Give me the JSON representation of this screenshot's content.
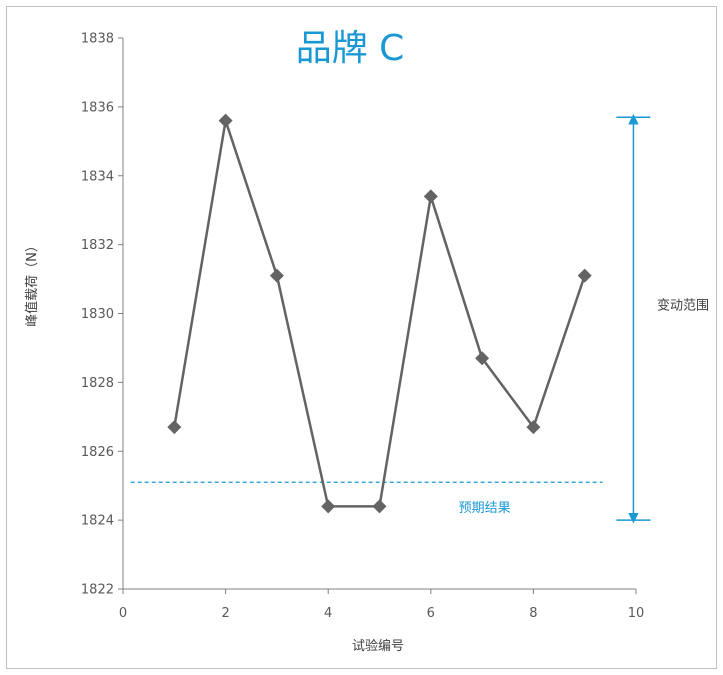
{
  "colors": {
    "series": "#636363",
    "accent": "#1a98d4",
    "axis": "#808080",
    "frame": "#bfbfbf",
    "annotation_text": "#404040"
  },
  "chart_data": {
    "type": "line",
    "title": "品牌 C",
    "xlabel": "试验编号",
    "ylabel": "峰值载荷（N）",
    "xlim": [
      0,
      10
    ],
    "ylim": [
      1822,
      1838
    ],
    "xticks": [
      0,
      2,
      4,
      6,
      8,
      10
    ],
    "yticks": [
      1822,
      1824,
      1826,
      1828,
      1830,
      1832,
      1834,
      1836,
      1838
    ],
    "grid": false,
    "legend": "none",
    "marker": "diamond",
    "x": [
      1,
      2,
      3,
      4,
      5,
      6,
      7,
      8,
      9
    ],
    "y": [
      1826.7,
      1835.6,
      1831.1,
      1824.4,
      1824.4,
      1833.4,
      1828.7,
      1826.7,
      1831.1
    ],
    "reference_line": {
      "label": "预期结果",
      "y": 1825.1,
      "x_range": [
        0.15,
        9.35
      ],
      "style": "dashed"
    },
    "range_annotation": {
      "label": "变动范围",
      "x": 9.95,
      "y_from": 1824.0,
      "y_to": 1835.7
    }
  }
}
